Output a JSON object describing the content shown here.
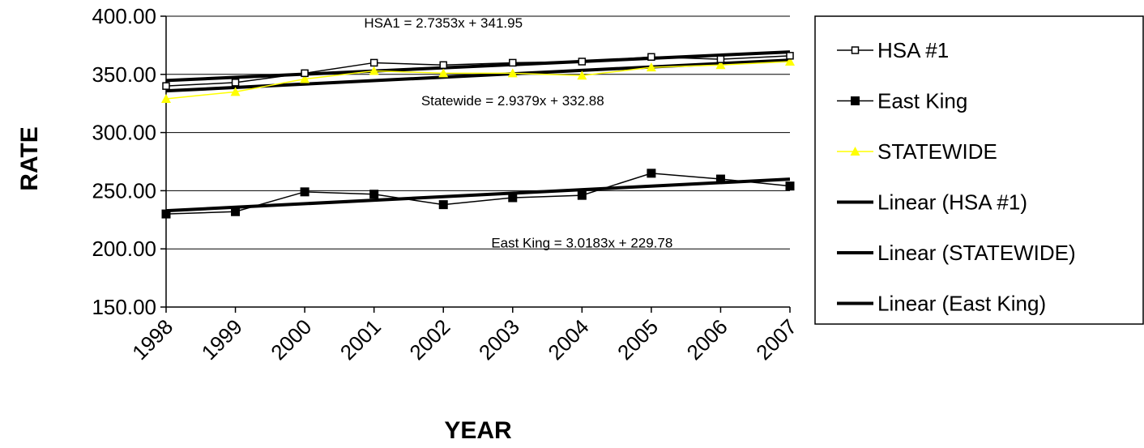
{
  "chart_data": {
    "type": "line",
    "xlabel": "YEAR",
    "ylabel": "RATE",
    "ylim": [
      150,
      400
    ],
    "yticks": [
      "150.00",
      "200.00",
      "250.00",
      "300.00",
      "350.00",
      "400.00"
    ],
    "x": [
      "1998",
      "1999",
      "2000",
      "2001",
      "2002",
      "2003",
      "2004",
      "2005",
      "2006",
      "2007"
    ],
    "grid": "horizontal",
    "legend_position": "right",
    "series": [
      {
        "name": "HSA #1",
        "marker": "square-open",
        "color": "#000000",
        "values": [
          340,
          343,
          351,
          360,
          358,
          360,
          361,
          365,
          363,
          366
        ]
      },
      {
        "name": "East King",
        "marker": "square-filled",
        "color": "#000000",
        "values": [
          230,
          232,
          249,
          247,
          238,
          244,
          246,
          265,
          260,
          254
        ]
      },
      {
        "name": "STATEWIDE",
        "marker": "triangle",
        "color": "#ffff00",
        "values": [
          329,
          335,
          346,
          353,
          351,
          351,
          349,
          356,
          358,
          361
        ]
      },
      {
        "name": "Linear (HSA #1)",
        "type": "trend",
        "slope": 2.7353,
        "intercept": 341.95,
        "color": "#000000"
      },
      {
        "name": "Linear (STATEWIDE)",
        "type": "trend",
        "slope": 2.9379,
        "intercept": 332.88,
        "color": "#000000"
      },
      {
        "name": "Linear (East King)",
        "type": "trend",
        "slope": 3.0183,
        "intercept": 229.78,
        "color": "#000000"
      }
    ],
    "annotations": [
      {
        "text": "HSA1 = 2.7353x + 341.95",
        "at_x": "2002",
        "at_y": 400
      },
      {
        "text": "Statewide = 2.9379x + 332.88",
        "at_x": "2003",
        "at_y": 333
      },
      {
        "text": "East King = 3.0183x + 229.78",
        "at_x": "2004",
        "at_y": 211
      }
    ]
  }
}
